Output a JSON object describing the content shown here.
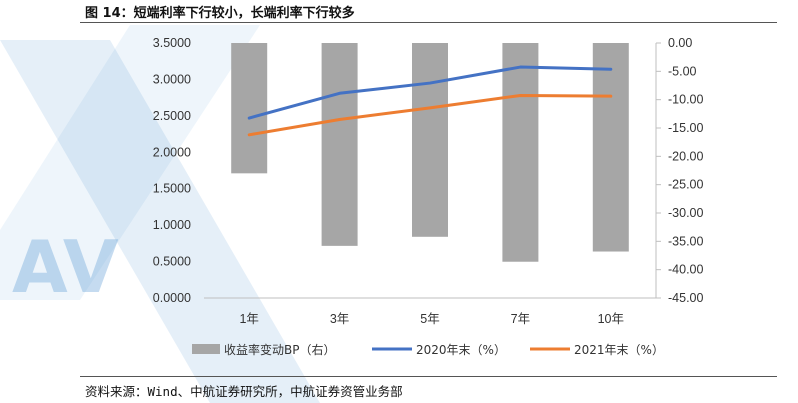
{
  "figure": {
    "title": "图 14：短端利率下行较小，长端利率下行较多",
    "source": "资料来源：Wind、中航证券研究所，中航证券资管业务部",
    "watermark_text": "AV"
  },
  "chart_data": {
    "type": "bar+line",
    "categories": [
      "1年",
      "3年",
      "5年",
      "7年",
      "10年"
    ],
    "bar_series": {
      "name": "收益率变动BP（右）",
      "axis": "right",
      "color": "#a6a6a6",
      "values": [
        -23,
        -35.8,
        -34.2,
        -38.6,
        -36.8
      ]
    },
    "line_series": [
      {
        "name": "2020年末（%）",
        "axis": "left",
        "color": "#4472c4",
        "values": [
          2.47,
          2.81,
          2.95,
          3.17,
          3.14
        ]
      },
      {
        "name": "2021年末（%）",
        "axis": "left",
        "color": "#ed7d31",
        "values": [
          2.24,
          2.45,
          2.61,
          2.78,
          2.77
        ]
      }
    ],
    "left_axis": {
      "ylim": [
        0,
        3.5
      ],
      "ticks": [
        "0.0000",
        "0.5000",
        "1.0000",
        "1.5000",
        "2.0000",
        "2.5000",
        "3.0000",
        "3.5000"
      ]
    },
    "right_axis": {
      "ylim": [
        -45,
        0
      ],
      "ticks": [
        "0.00",
        "-5.00",
        "-10.00",
        "-15.00",
        "-20.00",
        "-25.00",
        "-30.00",
        "-35.00",
        "-40.00",
        "-45.00"
      ]
    },
    "grid": false,
    "legend_position": "bottom"
  }
}
